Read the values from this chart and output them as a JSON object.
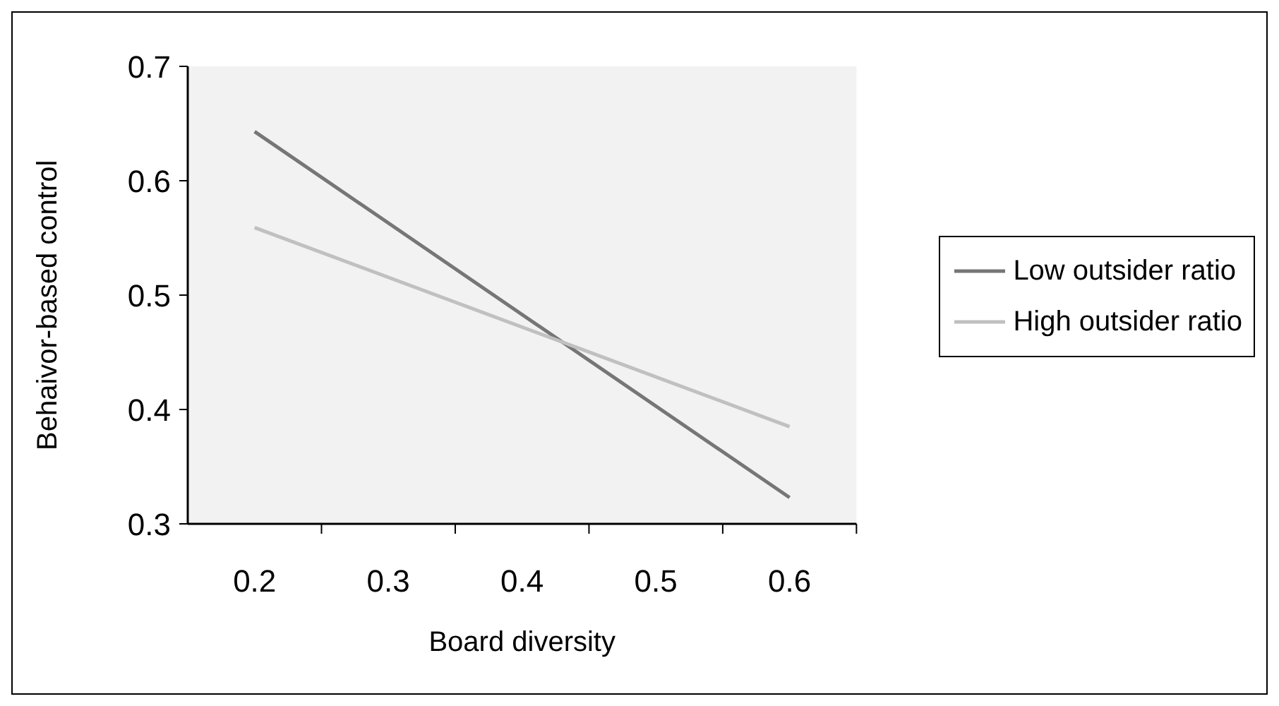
{
  "chart_data": {
    "type": "line",
    "xlabel": "Board diversity",
    "ylabel": "Behaivor-based control",
    "x": [
      0.2,
      0.6
    ],
    "series": [
      {
        "name": "Low outsider ratio",
        "color": "#767676",
        "values": [
          0.643,
          0.323
        ]
      },
      {
        "name": "High outsider ratio",
        "color": "#c0c0c0",
        "values": [
          0.559,
          0.385
        ]
      }
    ],
    "xlim": [
      0.15,
      0.65
    ],
    "xticks": [
      0.2,
      0.3,
      0.4,
      0.5,
      0.6,
      {
        "value": 0.25,
        "label": null
      },
      {
        "value": 0.35,
        "label": null
      },
      {
        "value": 0.45,
        "label": null
      },
      {
        "value": 0.55,
        "label": null
      },
      {
        "value": 0.65,
        "label": null
      }
    ],
    "ylim": [
      0.3,
      0.7
    ],
    "yticks": [
      0.3,
      0.4,
      0.5,
      0.6,
      0.7
    ],
    "grid": false,
    "legend": "right",
    "marker": "none",
    "line_style": "solid"
  }
}
